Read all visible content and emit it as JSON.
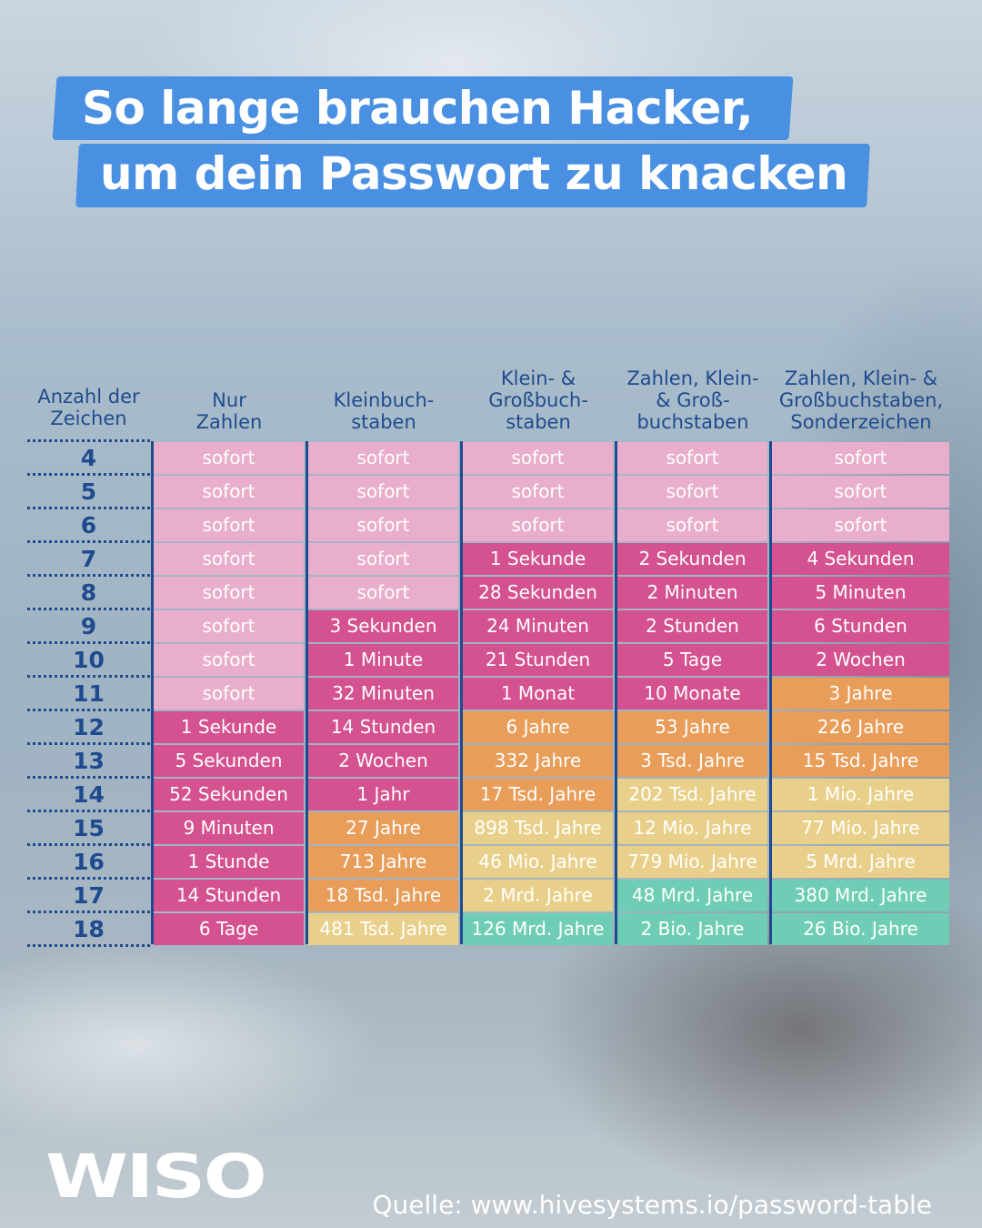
{
  "title": {
    "line1": "So lange brauchen Hacker,",
    "line2": "um dein Passwort zu knacken"
  },
  "colors": {
    "sofort": "#e8aecb",
    "magenta": "#d4528f",
    "orange": "#e89d59",
    "yellow": "#e9d08a",
    "teal": "#6fcdb6",
    "axis": "#1e4b8f",
    "title_bar": "#4a90e2"
  },
  "logo": "WISO",
  "source": "Quelle: www.hivesystems.io/password-table",
  "chart_data": {
    "type": "table",
    "row_header": "Anzahl der\nZeichen",
    "columns": [
      "Nur\nZahlen",
      "Kleinbuch-\nstaben",
      "Klein- &\nGroßbuch-\nstaben",
      "Zahlen, Klein-\n& Groß-\nbuchstaben",
      "Zahlen, Klein- &\nGroßbuchstaben,\nSonderzeichen"
    ],
    "rows": [
      {
        "chars": "4",
        "values": [
          "sofort",
          "sofort",
          "sofort",
          "sofort",
          "sofort"
        ],
        "levels": [
          "sofort",
          "sofort",
          "sofort",
          "sofort",
          "sofort"
        ]
      },
      {
        "chars": "5",
        "values": [
          "sofort",
          "sofort",
          "sofort",
          "sofort",
          "sofort"
        ],
        "levels": [
          "sofort",
          "sofort",
          "sofort",
          "sofort",
          "sofort"
        ]
      },
      {
        "chars": "6",
        "values": [
          "sofort",
          "sofort",
          "sofort",
          "sofort",
          "sofort"
        ],
        "levels": [
          "sofort",
          "sofort",
          "sofort",
          "sofort",
          "sofort"
        ]
      },
      {
        "chars": "7",
        "values": [
          "sofort",
          "sofort",
          "1 Sekunde",
          "2 Sekunden",
          "4 Sekunden"
        ],
        "levels": [
          "sofort",
          "sofort",
          "magenta",
          "magenta",
          "magenta"
        ]
      },
      {
        "chars": "8",
        "values": [
          "sofort",
          "sofort",
          "28 Sekunden",
          "2 Minuten",
          "5 Minuten"
        ],
        "levels": [
          "sofort",
          "sofort",
          "magenta",
          "magenta",
          "magenta"
        ]
      },
      {
        "chars": "9",
        "values": [
          "sofort",
          "3 Sekunden",
          "24 Minuten",
          "2 Stunden",
          "6 Stunden"
        ],
        "levels": [
          "sofort",
          "magenta",
          "magenta",
          "magenta",
          "magenta"
        ]
      },
      {
        "chars": "10",
        "values": [
          "sofort",
          "1 Minute",
          "21 Stunden",
          "5 Tage",
          "2 Wochen"
        ],
        "levels": [
          "sofort",
          "magenta",
          "magenta",
          "magenta",
          "magenta"
        ]
      },
      {
        "chars": "11",
        "values": [
          "sofort",
          "32 Minuten",
          "1 Monat",
          "10 Monate",
          "3 Jahre"
        ],
        "levels": [
          "sofort",
          "magenta",
          "magenta",
          "magenta",
          "orange"
        ]
      },
      {
        "chars": "12",
        "values": [
          "1 Sekunde",
          "14 Stunden",
          "6 Jahre",
          "53 Jahre",
          "226 Jahre"
        ],
        "levels": [
          "magenta",
          "magenta",
          "orange",
          "orange",
          "orange"
        ]
      },
      {
        "chars": "13",
        "values": [
          "5 Sekunden",
          "2 Wochen",
          "332 Jahre",
          "3 Tsd. Jahre",
          "15 Tsd. Jahre"
        ],
        "levels": [
          "magenta",
          "magenta",
          "orange",
          "orange",
          "orange"
        ]
      },
      {
        "chars": "14",
        "values": [
          "52 Sekunden",
          "1 Jahr",
          "17 Tsd. Jahre",
          "202 Tsd. Jahre",
          "1 Mio. Jahre"
        ],
        "levels": [
          "magenta",
          "magenta",
          "orange",
          "yellow",
          "yellow"
        ]
      },
      {
        "chars": "15",
        "values": [
          "9 Minuten",
          "27 Jahre",
          "898 Tsd. Jahre",
          "12 Mio. Jahre",
          "77 Mio. Jahre"
        ],
        "levels": [
          "magenta",
          "orange",
          "yellow",
          "yellow",
          "yellow"
        ]
      },
      {
        "chars": "16",
        "values": [
          "1 Stunde",
          "713 Jahre",
          "46 Mio. Jahre",
          "779 Mio. Jahre",
          "5 Mrd. Jahre"
        ],
        "levels": [
          "magenta",
          "orange",
          "yellow",
          "yellow",
          "yellow"
        ]
      },
      {
        "chars": "17",
        "values": [
          "14 Stunden",
          "18 Tsd. Jahre",
          "2 Mrd. Jahre",
          "48 Mrd. Jahre",
          "380 Mrd. Jahre"
        ],
        "levels": [
          "magenta",
          "orange",
          "yellow",
          "teal",
          "teal"
        ]
      },
      {
        "chars": "18",
        "values": [
          "6 Tage",
          "481 Tsd. Jahre",
          "126 Mrd. Jahre",
          "2 Bio. Jahre",
          "26 Bio. Jahre"
        ],
        "levels": [
          "magenta",
          "yellow",
          "teal",
          "teal",
          "teal"
        ]
      }
    ]
  }
}
